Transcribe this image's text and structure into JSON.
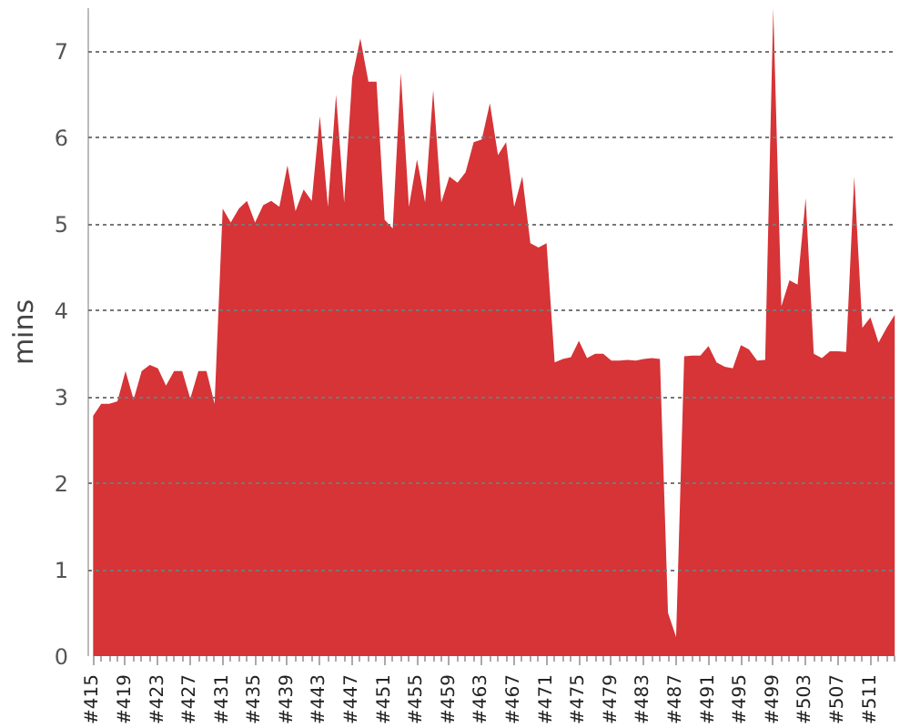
{
  "chart_data": {
    "type": "area",
    "ylabel": "mins",
    "color": "#d63437",
    "categories": [
      "#415",
      null,
      null,
      null,
      "#419",
      null,
      null,
      null,
      "#423",
      null,
      null,
      null,
      "#427",
      null,
      null,
      null,
      "#431",
      null,
      null,
      null,
      "#435",
      null,
      null,
      null,
      "#439",
      null,
      null,
      null,
      "#443",
      null,
      null,
      null,
      "#447",
      null,
      null,
      null,
      "#451",
      null,
      null,
      null,
      "#455",
      null,
      null,
      null,
      "#459",
      null,
      null,
      null,
      "#463",
      null,
      null,
      null,
      "#467",
      null,
      null,
      null,
      "#471",
      null,
      null,
      null,
      "#475",
      null,
      null,
      null,
      "#479",
      null,
      null,
      null,
      "#483",
      null,
      null,
      null,
      "#487",
      null,
      null,
      null,
      "#491",
      null,
      null,
      null,
      "#495",
      null,
      null,
      null,
      "#499",
      null,
      null,
      null,
      "#503",
      null,
      null,
      null,
      "#507",
      null,
      null,
      null,
      "#511",
      null,
      null,
      null
    ],
    "values": [
      2.78,
      2.92,
      2.92,
      2.95,
      3.3,
      2.97,
      3.3,
      3.37,
      3.33,
      3.13,
      3.3,
      3.3,
      2.98,
      3.3,
      3.3,
      2.92,
      5.18,
      5.02,
      5.18,
      5.27,
      5.02,
      5.22,
      5.27,
      5.2,
      5.68,
      5.15,
      5.4,
      5.27,
      6.25,
      5.2,
      6.5,
      5.25,
      6.7,
      7.15,
      6.65,
      6.65,
      5.05,
      4.95,
      6.75,
      5.2,
      5.75,
      5.25,
      6.55,
      5.25,
      5.55,
      5.48,
      5.6,
      5.95,
      5.98,
      6.4,
      5.8,
      5.95,
      5.2,
      5.55,
      4.78,
      4.73,
      4.78,
      3.4,
      3.44,
      3.46,
      3.65,
      3.45,
      3.5,
      3.5,
      3.42,
      3.42,
      3.43,
      3.42,
      3.44,
      3.45,
      3.44,
      0.5,
      0.22,
      3.47,
      3.48,
      3.48,
      3.59,
      3.4,
      3.35,
      3.33,
      3.6,
      3.55,
      3.42,
      3.43,
      7.5,
      4.05,
      4.35,
      4.3,
      5.3,
      3.5,
      3.45,
      3.53,
      3.53,
      3.52,
      5.55,
      3.8,
      3.92,
      3.63,
      3.8,
      3.95
    ],
    "ylim": [
      0,
      7.5
    ],
    "yticks": [
      0,
      1,
      2,
      3,
      4,
      5,
      6,
      7
    ],
    "grid": "y"
  }
}
